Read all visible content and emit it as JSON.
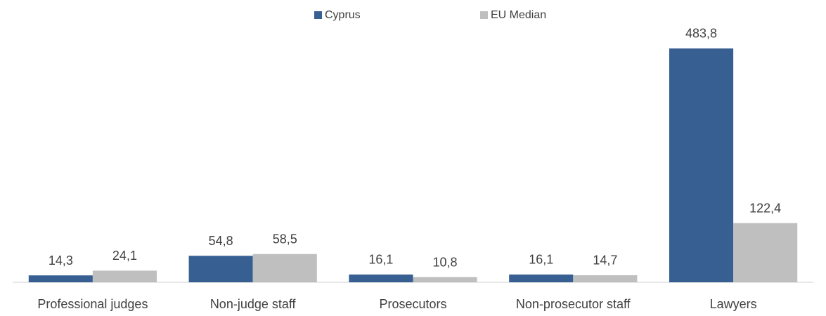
{
  "chart_data": {
    "type": "bar",
    "categories": [
      "Professional judges",
      "Non-judge staff",
      "Prosecutors",
      "Non-prosecutor staff",
      "Lawyers"
    ],
    "series": [
      {
        "name": "Cyprus",
        "color": "#375f91",
        "values": [
          14.3,
          54.8,
          16.1,
          16.1,
          483.8
        ],
        "value_labels": [
          "14,3",
          "54,8",
          "16,1",
          "16,1",
          "483,8"
        ]
      },
      {
        "name": "EU Median",
        "color": "#bfbfbf",
        "values": [
          24.1,
          58.5,
          10.8,
          14.7,
          122.4
        ],
        "value_labels": [
          "24,1",
          "58,5",
          "10,8",
          "14,7",
          "122,4"
        ]
      }
    ],
    "ylim": [
      0,
      584
    ],
    "legend": "top"
  }
}
